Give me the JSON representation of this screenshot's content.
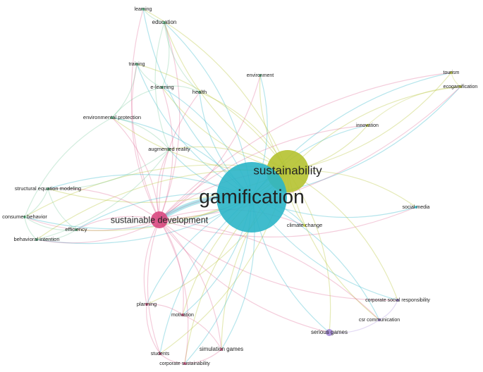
{
  "nodes": [
    {
      "label": "learning"
    },
    {
      "label": "education"
    },
    {
      "label": "training"
    },
    {
      "label": "e-learning"
    },
    {
      "label": "health"
    },
    {
      "label": "environment"
    },
    {
      "label": "tourism"
    },
    {
      "label": "ecogamification"
    },
    {
      "label": "innovation"
    },
    {
      "label": "environmental protection"
    },
    {
      "label": "augmented reality"
    },
    {
      "label": "sustainability"
    },
    {
      "label": "gamification"
    },
    {
      "label": "structural equation modeling"
    },
    {
      "label": "consumer behavior"
    },
    {
      "label": "efficiency"
    },
    {
      "label": "behavioral intention"
    },
    {
      "label": "sustainable development"
    },
    {
      "label": "social media"
    },
    {
      "label": "climate change"
    },
    {
      "label": "planning"
    },
    {
      "label": "motivation"
    },
    {
      "label": "corporate social responsibility"
    },
    {
      "label": "csr communication"
    },
    {
      "label": "serious games"
    },
    {
      "label": "simulation games"
    },
    {
      "label": "students"
    },
    {
      "label": "corporate sustainability"
    }
  ]
}
